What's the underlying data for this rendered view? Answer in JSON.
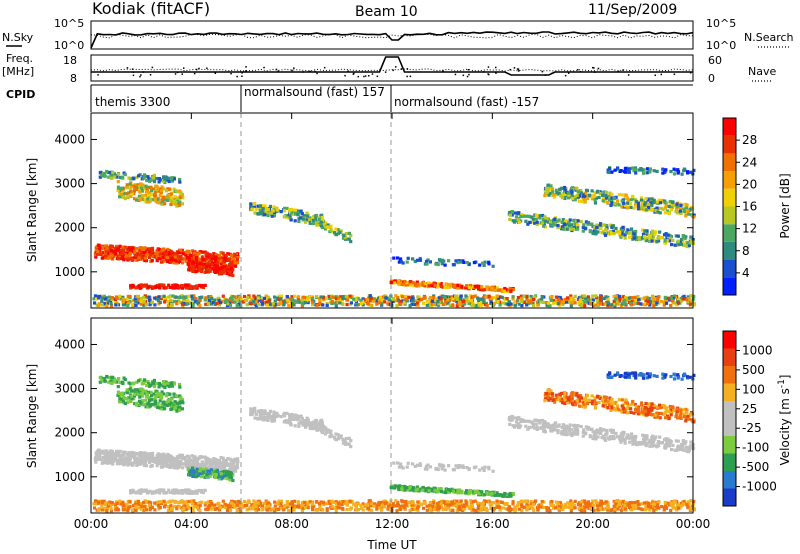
{
  "header": {
    "title": "Kodiak (fitACF)",
    "beam": "Beam 10",
    "date": "11/Sep/2009"
  },
  "top_panels": {
    "nsky_label": "N.Sky",
    "nsearch_label": "N.Search",
    "noise_ticks_left": [
      "10^5",
      "10^0"
    ],
    "noise_ticks_right": [
      "10^5",
      "10^0"
    ],
    "freq_label_lines": [
      "Freq.",
      "[MHz]"
    ],
    "freq_ticks": [
      "18",
      "8"
    ],
    "nave_label": "Nave",
    "nave_ticks": [
      "60",
      "0"
    ],
    "cpid_label": "CPID",
    "cpid_segments": [
      {
        "label": "themis 3300",
        "start_hour": 0,
        "end_hour": 6.0
      },
      {
        "label": "normalsound (fast) 157",
        "start_hour": 6.0,
        "end_hour": 12.0
      },
      {
        "label": "normalsound (fast) -157",
        "start_hour": 12.0,
        "end_hour": 24.0
      }
    ]
  },
  "chart_data": [
    {
      "type": "heatmap",
      "name": "power",
      "xlabel": "Time UT",
      "ylabel": "Slant Range [km]",
      "x_ticks": [
        "00:00",
        "04:00",
        "08:00",
        "12:00",
        "16:00",
        "20:00",
        "00:00"
      ],
      "x_tick_hours": [
        0,
        4,
        8,
        12,
        16,
        20,
        24
      ],
      "xlim_hours": [
        0,
        24
      ],
      "ylim": [
        180,
        4600
      ],
      "y_ticks": [
        1000,
        2000,
        3000,
        4000
      ],
      "colorbar": {
        "label": "Power [dB]",
        "tick_labels": [
          "28",
          "24",
          "20",
          "16",
          "12",
          "8",
          "4"
        ],
        "colors": [
          "#0020ff",
          "#1a50d0",
          "#2f8a80",
          "#4aa860",
          "#b8c820",
          "#f0d000",
          "#f5a000",
          "#f07000",
          "#e83000",
          "#ff0000"
        ]
      }
    },
    {
      "type": "heatmap",
      "name": "velocity",
      "xlabel": "Time UT",
      "ylabel": "Slant Range [km]",
      "x_ticks": [
        "00:00",
        "04:00",
        "08:00",
        "12:00",
        "16:00",
        "20:00",
        "00:00"
      ],
      "x_tick_hours": [
        0,
        4,
        8,
        12,
        16,
        20,
        24
      ],
      "xlim_hours": [
        0,
        24
      ],
      "ylim": [
        180,
        4600
      ],
      "y_ticks": [
        1000,
        2000,
        3000,
        4000
      ],
      "colorbar": {
        "label": "Velocity [m s^-1]",
        "tick_labels": [
          "1000",
          "500",
          "100",
          "25",
          "-25",
          "-100",
          "-500",
          "-1000"
        ],
        "colors": [
          "#1a3cc8",
          "#2a7ad0",
          "#2e9e50",
          "#7ccc40",
          "#c0c0c0",
          "#c0c0c0",
          "#f5b020",
          "#f07010",
          "#e84010",
          "#ff0000"
        ]
      }
    }
  ]
}
